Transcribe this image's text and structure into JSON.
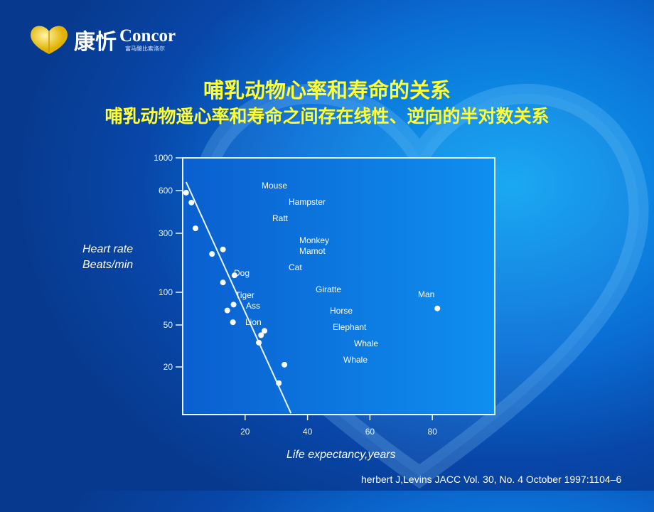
{
  "logo": {
    "brand_cn": "康忻",
    "brand_en": "Concor",
    "subtitle_cn": "富马酸比索洛尔"
  },
  "title": "哺乳动物心率和寿命的关系",
  "subtitle": "哺乳动物遥心率和寿命之间存在线性、逆向的半对数关系",
  "citation": "herbert J,Levins JACC Vol. 30, No. 4 October 1997:1104–6",
  "colors": {
    "title": "#ffff33",
    "background": "#0a6fd6",
    "marks": "#ffffff"
  },
  "chart_data": {
    "type": "scatter",
    "title": "",
    "ylabel_lines": [
      "Heart rate",
      "Beats/min"
    ],
    "xlabel": "Life expectancy,years",
    "xlim": [
      0,
      100
    ],
    "ylim": [
      7,
      1000
    ],
    "y_scale": "log",
    "grid": false,
    "xticks": [
      "20",
      "40",
      "60",
      "80"
    ],
    "yticks": [
      "1000",
      "600",
      "300",
      "100",
      "50",
      "20"
    ],
    "points": [
      {
        "x": 1.1,
        "y": 580
      },
      {
        "x": 2.8,
        "y": 494
      },
      {
        "x": 4.1,
        "y": 325
      },
      {
        "x": 9.4,
        "y": 204
      },
      {
        "x": 12.9,
        "y": 222
      },
      {
        "x": 16.6,
        "y": 137
      },
      {
        "x": 12.9,
        "y": 120
      },
      {
        "x": 16.3,
        "y": 77
      },
      {
        "x": 14.3,
        "y": 68
      },
      {
        "x": 16.1,
        "y": 53
      },
      {
        "x": 26.2,
        "y": 44
      },
      {
        "x": 25.1,
        "y": 40
      },
      {
        "x": 24.4,
        "y": 34
      },
      {
        "x": 32.6,
        "y": 21
      },
      {
        "x": 30.8,
        "y": 14
      },
      {
        "x": 81.6,
        "y": 71
      }
    ],
    "trend_line": [
      {
        "x": 1.1,
        "y": 686
      },
      {
        "x": 34.7,
        "y": 7.2
      }
    ],
    "annotations": [
      "Mouse",
      "Hampster",
      "Ratt",
      "Monkey",
      "Mamot",
      "Cat",
      "Dog",
      "Giratte",
      "Tiger",
      "Man",
      "Ass",
      "Horse",
      "Lion",
      "Elephant",
      "Whale",
      "Whale"
    ]
  }
}
